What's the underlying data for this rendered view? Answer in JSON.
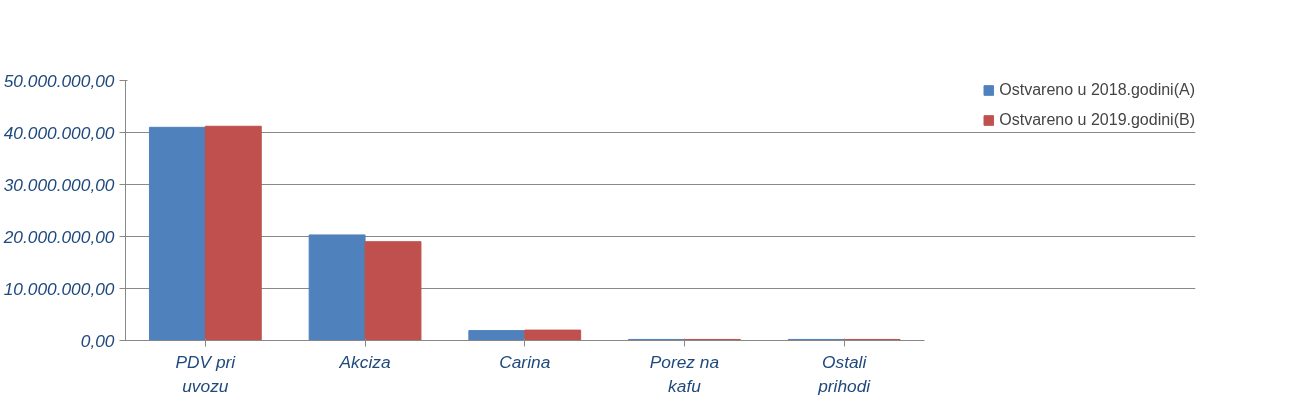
{
  "chart_data": {
    "type": "bar",
    "categories": [
      "PDV pri uvozu",
      "Akciza",
      "Carina",
      "Porez na kafu",
      "Ostali prihodi"
    ],
    "series": [
      {
        "name": "Ostvareno u 2018.godini(A)",
        "color": "#4f81bd",
        "values": [
          41000000,
          20300000,
          1900000,
          200000,
          200000
        ]
      },
      {
        "name": "Ostvareno u 2019.godini(B)",
        "color": "#c0504d",
        "values": [
          41200000,
          19000000,
          2000000,
          200000,
          200000
        ]
      }
    ],
    "ylim": [
      0,
      50000000
    ],
    "yticks": [
      {
        "value": 0,
        "label": "0,00"
      },
      {
        "value": 10000000,
        "label": "10.000.000,00"
      },
      {
        "value": 20000000,
        "label": "20.000.000,00"
      },
      {
        "value": 30000000,
        "label": "30.000.000,00"
      },
      {
        "value": 40000000,
        "label": "40.000.000,00"
      },
      {
        "value": 50000000,
        "label": "50.000.000,00"
      }
    ],
    "grid": "y",
    "legend": "right"
  }
}
